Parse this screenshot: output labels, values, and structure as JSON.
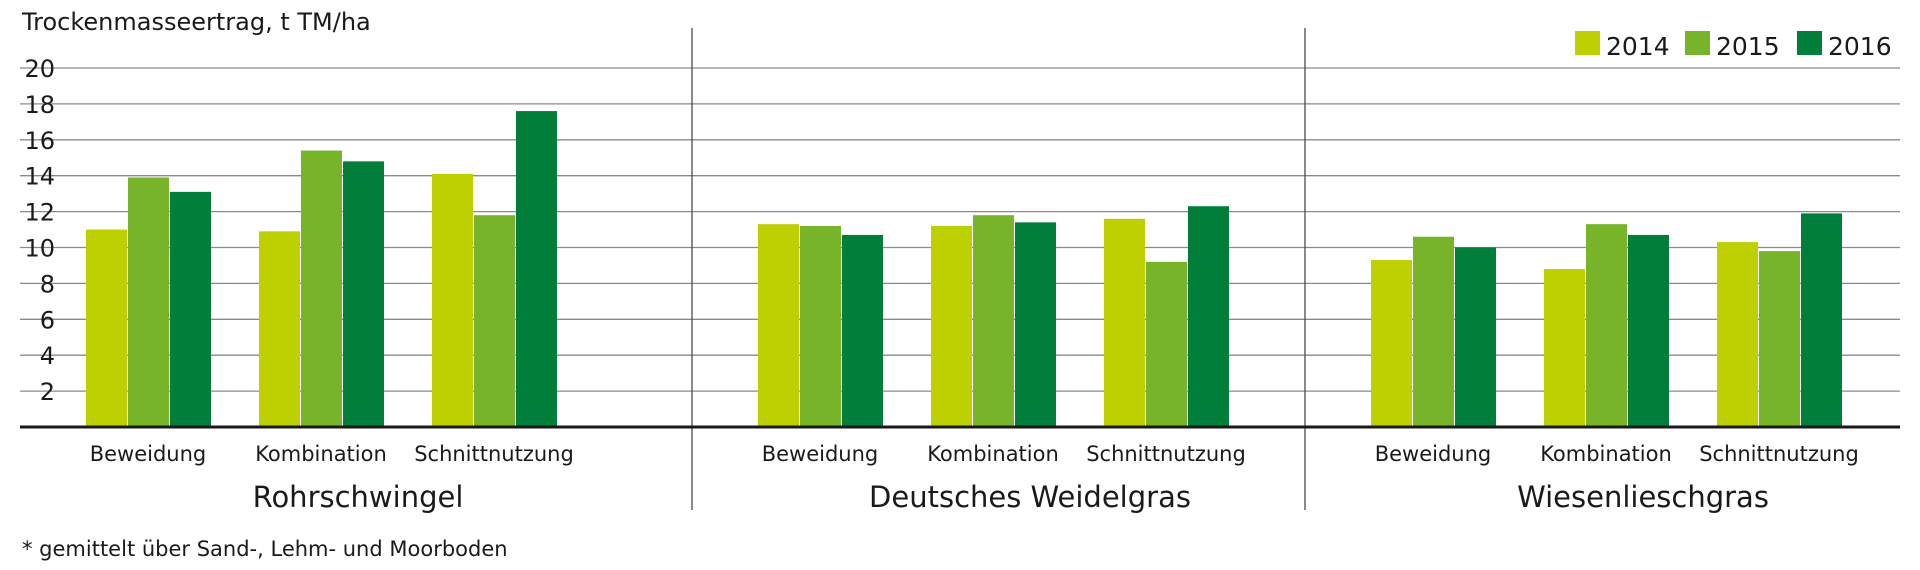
{
  "chart_data": {
    "type": "bar",
    "ylabel": "Trockenmasseertrag, t TM/ha",
    "ylim": [
      0,
      20
    ],
    "yticks": [
      2,
      4,
      6,
      8,
      10,
      12,
      14,
      16,
      18,
      20
    ],
    "grid": true,
    "legend_position": "top-right",
    "footnote": "* gemittelt über Sand-, Lehm- und Moorboden",
    "series": [
      {
        "name": "2014",
        "color": "#bdd001"
      },
      {
        "name": "2015",
        "color": "#78b42a"
      },
      {
        "name": "2016",
        "color": "#007e3a"
      }
    ],
    "groups": [
      {
        "name": "Rohrschwingel",
        "categories": [
          {
            "label": "Beweidung",
            "values": [
              11.0,
              13.9,
              13.1
            ]
          },
          {
            "label": "Kombination",
            "values": [
              10.9,
              15.4,
              14.8
            ]
          },
          {
            "label": "Schnittnutzung",
            "values": [
              14.1,
              11.8,
              17.6
            ]
          }
        ]
      },
      {
        "name": "Deutsches Weidelgras",
        "categories": [
          {
            "label": "Beweidung",
            "values": [
              11.3,
              11.2,
              10.7
            ]
          },
          {
            "label": "Kombination",
            "values": [
              11.2,
              11.8,
              11.4
            ]
          },
          {
            "label": "Schnittnutzung",
            "values": [
              11.6,
              9.2,
              12.3
            ]
          }
        ]
      },
      {
        "name": "Wiesenlieschgras",
        "categories": [
          {
            "label": "Beweidung",
            "values": [
              9.3,
              10.6,
              10.0
            ]
          },
          {
            "label": "Kombination",
            "values": [
              8.8,
              11.3,
              10.7
            ]
          },
          {
            "label": "Schnittnutzung",
            "values": [
              10.3,
              9.8,
              11.9
            ]
          }
        ]
      }
    ]
  }
}
